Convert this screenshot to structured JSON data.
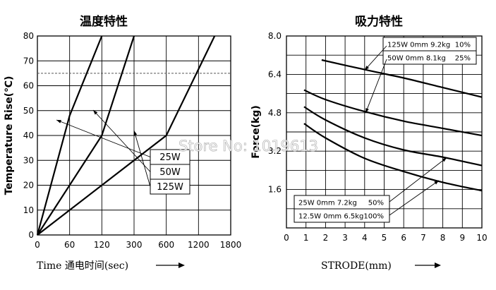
{
  "watermark": "Store No: 1019613",
  "chart_data": [
    {
      "type": "line",
      "title": "温度特性",
      "ylabel": "Temperature Rise(℃)",
      "xlabel": "Time 通电时间(sec)",
      "x_ticks": [
        0,
        60,
        120,
        300,
        600,
        1200,
        1800
      ],
      "y_ticks": [
        10,
        20,
        30,
        40,
        50,
        60,
        70,
        80
      ],
      "y_origin_label": "0",
      "ylim": [
        0,
        80
      ],
      "reference_line": 65,
      "series": [
        {
          "name": "25W",
          "points": [
            [
              0,
              0
            ],
            [
              60,
              48
            ],
            [
              120,
              80
            ]
          ]
        },
        {
          "name": "50W",
          "points": [
            [
              0,
              0
            ],
            [
              120,
              40
            ],
            [
              300,
              80
            ]
          ]
        },
        {
          "name": "125W",
          "points": [
            [
              0,
              0
            ],
            [
              600,
              40
            ],
            [
              1500,
              80
            ]
          ]
        }
      ],
      "legend": [
        "25W",
        "50W",
        "125W"
      ]
    },
    {
      "type": "line",
      "title": "吸力特性",
      "ylabel": "Force(kg)",
      "xlabel": "STRODE(mm)",
      "x_ticks": [
        0,
        1,
        2,
        3,
        4,
        5,
        6,
        7,
        8,
        9,
        10
      ],
      "y_ticks": [
        1.6,
        3.2,
        4.8,
        6.4,
        8.0
      ],
      "y_tick_labels": [
        "1.6",
        "3.2",
        "4.8",
        "6.4",
        "8.0"
      ],
      "xlim": [
        0,
        10
      ],
      "ylim": [
        0,
        8.0
      ],
      "series": [
        {
          "name": "125W 0mm 9.2kg 10%",
          "points": [
            [
              1.8,
              7.0
            ],
            [
              4,
              6.6
            ],
            [
              6,
              6.25
            ],
            [
              8,
              5.85
            ],
            [
              10,
              5.45
            ]
          ]
        },
        {
          "name": "50W 0mm 8.1kg 25%",
          "points": [
            [
              0.9,
              5.75
            ],
            [
              2,
              5.35
            ],
            [
              4,
              4.85
            ],
            [
              6,
              4.45
            ],
            [
              8,
              4.15
            ],
            [
              10,
              3.85
            ]
          ]
        },
        {
          "name": "25W 0mm 7.2kg 50%",
          "points": [
            [
              0.9,
              5.05
            ],
            [
              2,
              4.5
            ],
            [
              4,
              3.75
            ],
            [
              6,
              3.25
            ],
            [
              8,
              2.95
            ],
            [
              10,
              2.6
            ]
          ]
        },
        {
          "name": "12.5W 0mm 6.5kg 100%",
          "points": [
            [
              0.9,
              4.35
            ],
            [
              2,
              3.75
            ],
            [
              4,
              2.9
            ],
            [
              6,
              2.35
            ],
            [
              8,
              1.9
            ],
            [
              10,
              1.55
            ]
          ]
        }
      ],
      "legend_top": [
        {
          "label": "125W 0mm 9.2kg",
          "duty": "10%"
        },
        {
          "label": "50W 0mm 8.1kg",
          "duty": "25%"
        }
      ],
      "legend_bottom": [
        {
          "label": "25W 0mm 7.2kg",
          "duty": "50%"
        },
        {
          "label": "12.5W 0mm 6.5kg",
          "duty": "100%"
        }
      ]
    }
  ]
}
